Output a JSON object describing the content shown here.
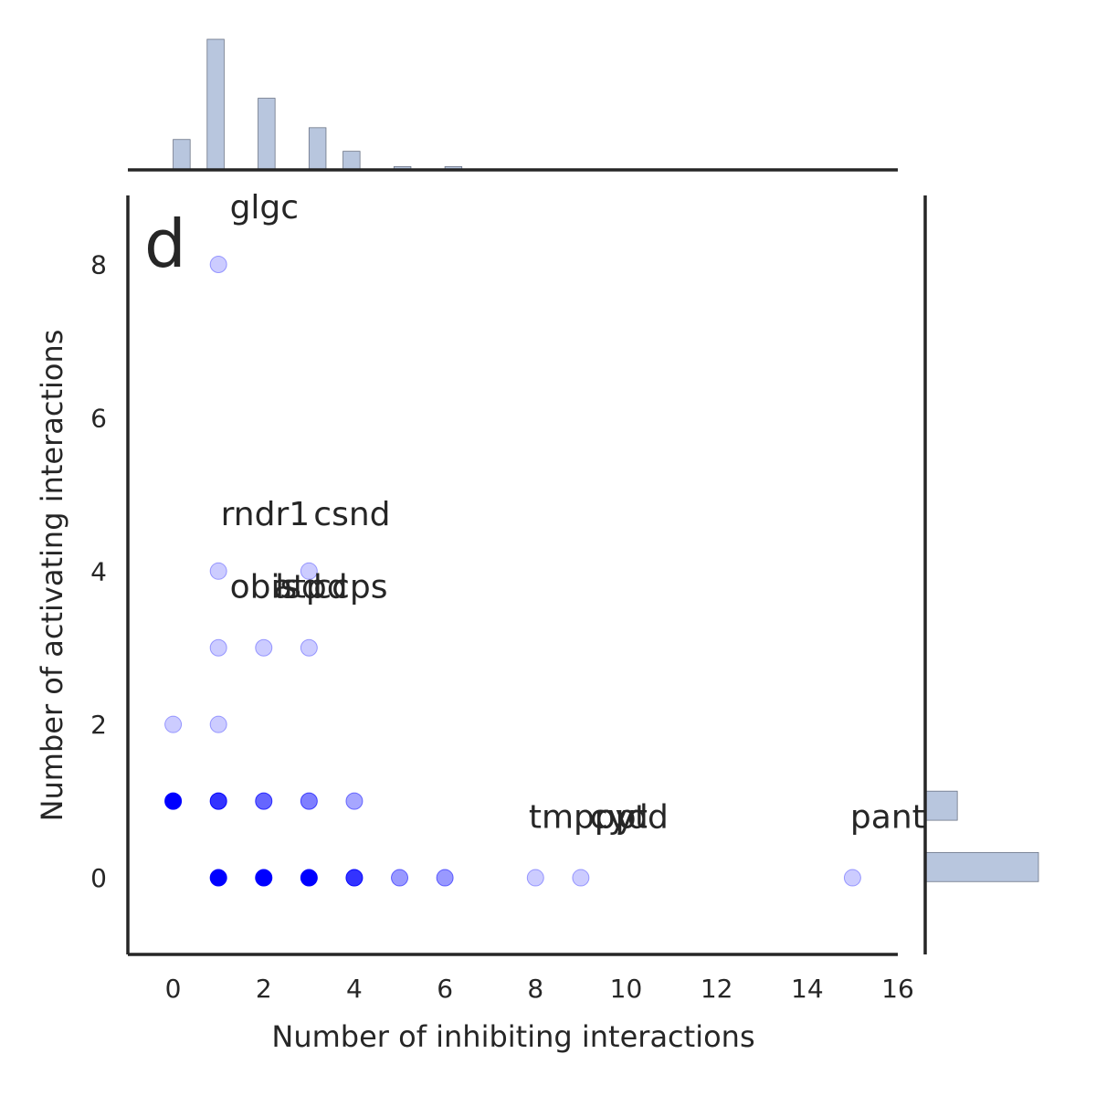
{
  "chart_data": {
    "type": "scatter",
    "panel_label": "d",
    "xlabel": "Number of inhibiting interactions",
    "ylabel": "Number of activating interactions",
    "xlim": [
      -1,
      16
    ],
    "ylim": [
      -1,
      8.9
    ],
    "xticks": [
      0,
      2,
      4,
      6,
      8,
      10,
      12,
      14,
      16
    ],
    "yticks": [
      0,
      2,
      4,
      6,
      8
    ],
    "point_color": "#0000ff",
    "hist_color": "#b8c6de",
    "points": [
      {
        "x": 1,
        "y": 8,
        "alpha": 0.2
      },
      {
        "x": 1,
        "y": 4,
        "alpha": 0.2
      },
      {
        "x": 3,
        "y": 4,
        "alpha": 0.2
      },
      {
        "x": 1,
        "y": 3,
        "alpha": 0.2
      },
      {
        "x": 2,
        "y": 3,
        "alpha": 0.2
      },
      {
        "x": 3,
        "y": 3,
        "alpha": 0.2
      },
      {
        "x": 0,
        "y": 2,
        "alpha": 0.2
      },
      {
        "x": 1,
        "y": 2,
        "alpha": 0.2
      },
      {
        "x": 0,
        "y": 1,
        "alpha": 1.0
      },
      {
        "x": 1,
        "y": 1,
        "alpha": 0.8
      },
      {
        "x": 2,
        "y": 1,
        "alpha": 0.6
      },
      {
        "x": 3,
        "y": 1,
        "alpha": 0.5
      },
      {
        "x": 4,
        "y": 1,
        "alpha": 0.35
      },
      {
        "x": 1,
        "y": 0,
        "alpha": 1.0
      },
      {
        "x": 2,
        "y": 0,
        "alpha": 1.0
      },
      {
        "x": 3,
        "y": 0,
        "alpha": 1.0
      },
      {
        "x": 4,
        "y": 0,
        "alpha": 0.8
      },
      {
        "x": 5,
        "y": 0,
        "alpha": 0.4
      },
      {
        "x": 6,
        "y": 0,
        "alpha": 0.4
      },
      {
        "x": 8,
        "y": 0,
        "alpha": 0.2
      },
      {
        "x": 9,
        "y": 0,
        "alpha": 0.2
      },
      {
        "x": 15,
        "y": 0,
        "alpha": 0.2
      }
    ],
    "annotations": [
      {
        "text": "glgc",
        "x": 1.25,
        "y": 8.6
      },
      {
        "text": "rndr1",
        "x": 1.05,
        "y": 4.6
      },
      {
        "text": "csnd",
        "x": 3.1,
        "y": 4.6
      },
      {
        "text": "obis",
        "x": 1.25,
        "y": 3.65
      },
      {
        "text": "atpd",
        "x": 2.2,
        "y": 3.65
      },
      {
        "text": "lsd",
        "x": 2.25,
        "y": 3.65
      },
      {
        "text": "ccps",
        "x": 3.1,
        "y": 3.65
      },
      {
        "text": "tmppp",
        "x": 7.85,
        "y": 0.65
      },
      {
        "text": "cyd",
        "x": 9.2,
        "y": 0.65
      },
      {
        "text": "pytd",
        "x": 9.3,
        "y": 0.65
      },
      {
        "text": "pant",
        "x": 14.95,
        "y": 0.65
      }
    ],
    "top_histogram": {
      "bins": [
        {
          "x0": 0.0,
          "x1": 0.375,
          "count": 5
        },
        {
          "x0": 0.75,
          "x1": 1.125,
          "count": 22
        },
        {
          "x0": 1.875,
          "x1": 2.25,
          "count": 12
        },
        {
          "x0": 3.0,
          "x1": 3.375,
          "count": 7
        },
        {
          "x0": 3.75,
          "x1": 4.125,
          "count": 3
        },
        {
          "x0": 4.875,
          "x1": 5.25,
          "count": 0.4
        },
        {
          "x0": 6.0,
          "x1": 6.375,
          "count": 0.4
        }
      ]
    },
    "right_histogram": {
      "bins": [
        {
          "y0": -0.05,
          "y1": 0.33,
          "count": 36
        },
        {
          "y0": 0.75,
          "y1": 1.13,
          "count": 10
        }
      ]
    }
  }
}
